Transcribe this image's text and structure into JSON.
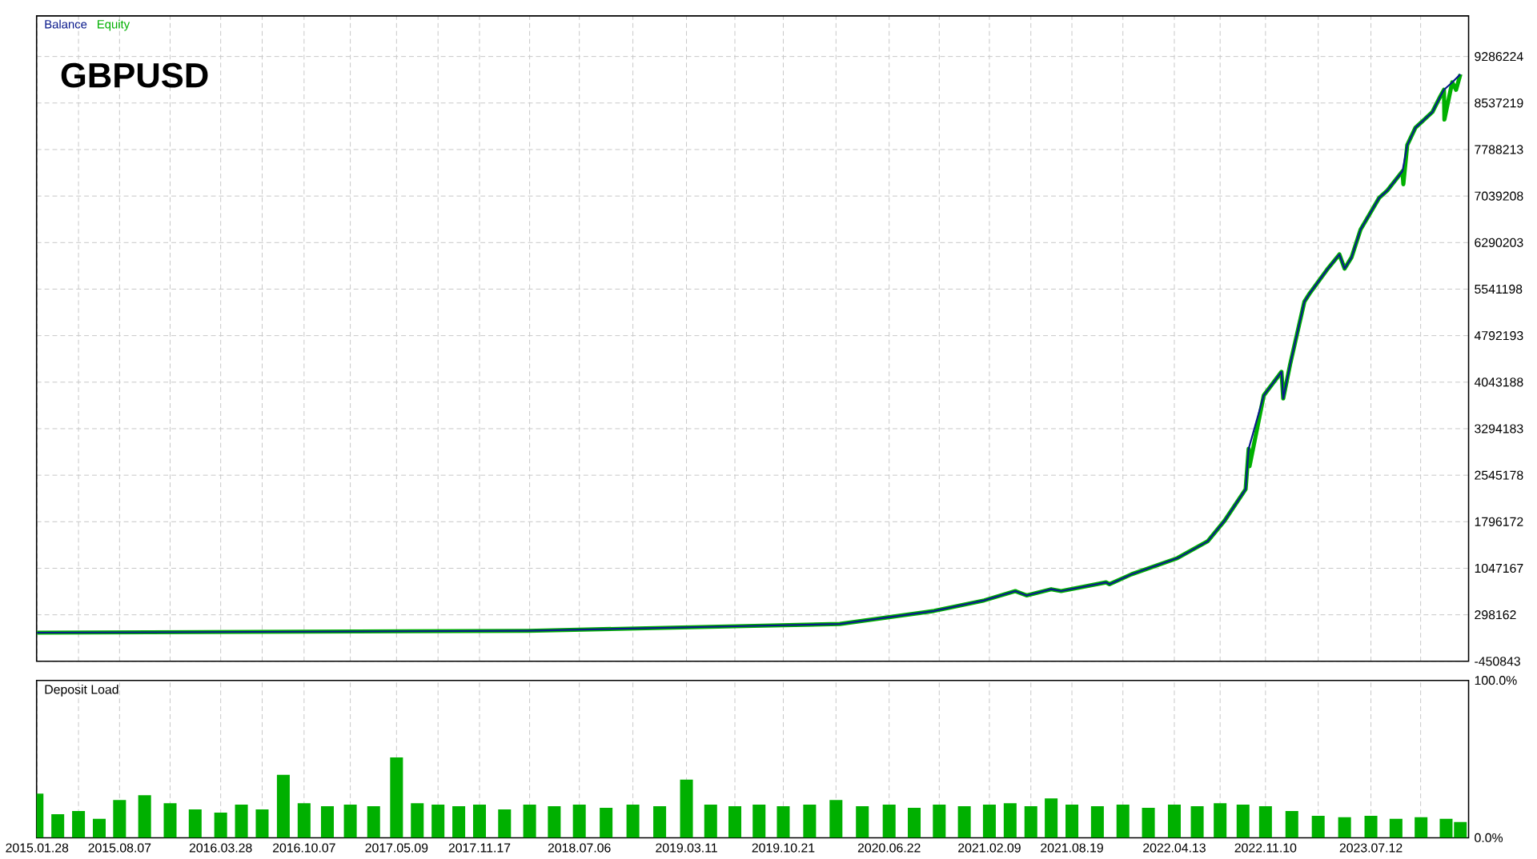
{
  "chart_data": [
    {
      "type": "line",
      "title": "GBPUSD",
      "legend": "top left",
      "grid": true,
      "tick_labels": "y",
      "xlim": [
        "2015-01-27",
        "2024-02-23"
      ],
      "ylim": [
        -450843,
        9940000
      ],
      "xticks": [
        {
          "value": "2015-01-28",
          "label": null
        },
        {
          "value": "2015-05-04",
          "label": null
        },
        {
          "value": "2015-08-07",
          "label": null
        },
        {
          "value": "2015-12-02",
          "label": null
        },
        {
          "value": "2016-03-28",
          "label": null
        },
        {
          "value": "2016-07-02",
          "label": null
        },
        {
          "value": "2016-10-07",
          "label": null
        },
        {
          "value": "2017-01-22",
          "label": null
        },
        {
          "value": "2017-05-09",
          "label": null
        },
        {
          "value": "2017-08-13",
          "label": null
        },
        {
          "value": "2017-11-17",
          "label": null
        },
        {
          "value": "2018-03-13",
          "label": null
        },
        {
          "value": "2018-07-06",
          "label": null
        },
        {
          "value": "2018-11-07",
          "label": null
        },
        {
          "value": "2019-03-11",
          "label": null
        },
        {
          "value": "2019-07-01",
          "label": null
        },
        {
          "value": "2019-10-21",
          "label": null
        },
        {
          "value": "2020-02-20",
          "label": null
        },
        {
          "value": "2020-06-22",
          "label": null
        },
        {
          "value": "2020-10-16",
          "label": null
        },
        {
          "value": "2021-02-09",
          "label": null
        },
        {
          "value": "2021-05-16",
          "label": null
        },
        {
          "value": "2021-08-19",
          "label": null
        },
        {
          "value": "2021-12-15",
          "label": null
        },
        {
          "value": "2022-04-13",
          "label": null
        },
        {
          "value": "2022-07-28",
          "label": null
        },
        {
          "value": "2022-11-10",
          "label": null
        },
        {
          "value": "2023-03-12",
          "label": null
        },
        {
          "value": "2023-07-12",
          "label": null
        },
        {
          "value": "2023-11-04",
          "label": null
        }
      ],
      "yticks": [
        -450843,
        298162,
        1047167,
        1796172,
        2545178,
        3294183,
        4043188,
        4792193,
        5541198,
        6290203,
        7039208,
        7788213,
        8537219,
        9286224
      ],
      "series": [
        {
          "name": "Balance",
          "color": "#0a1a8c",
          "x": [
            "2015-01-28",
            "2018-03-09",
            "2019-08-15",
            "2020-02-29",
            "2020-10-04",
            "2021-01-28",
            "2021-04-10",
            "2021-05-06",
            "2021-07-02",
            "2021-07-25",
            "2021-11-06",
            "2021-11-14",
            "2022-01-04",
            "2022-04-20",
            "2022-06-29",
            "2022-08-07",
            "2022-09-25",
            "2022-10-02",
            "2022-11-06",
            "2022-12-17",
            "2022-12-21",
            "2023-01-06",
            "2023-02-08",
            "2023-02-20",
            "2023-04-01",
            "2023-04-30",
            "2023-05-12",
            "2023-05-28",
            "2023-06-18",
            "2023-07-31",
            "2023-08-19",
            "2023-09-23",
            "2023-10-04",
            "2023-10-23",
            "2023-12-01",
            "2023-12-20",
            "2023-12-28",
            "2024-01-16",
            "2024-02-04"
          ],
          "values": [
            10000,
            40000,
            120000,
            150000,
            360000,
            530000,
            680000,
            610000,
            710000,
            680000,
            820000,
            790000,
            950000,
            1210000,
            1480000,
            1810000,
            2320000,
            2970000,
            3830000,
            4210000,
            3780000,
            4330000,
            5340000,
            5470000,
            5850000,
            6100000,
            5870000,
            6050000,
            6500000,
            7010000,
            7130000,
            7440000,
            7860000,
            8140000,
            8390000,
            8650000,
            8750000,
            8870000,
            9000000
          ]
        },
        {
          "name": "Equity",
          "color": "#00b000",
          "x": [
            "2015-01-28",
            "2018-03-09",
            "2019-08-15",
            "2020-02-29",
            "2020-10-04",
            "2021-01-28",
            "2021-04-10",
            "2021-05-06",
            "2021-07-02",
            "2021-07-25",
            "2021-11-06",
            "2021-11-14",
            "2022-01-04",
            "2022-04-20",
            "2022-06-29",
            "2022-08-07",
            "2022-09-25",
            "2022-10-02",
            "2022-10-04",
            "2022-11-06",
            "2022-12-17",
            "2022-12-21",
            "2023-01-06",
            "2023-02-08",
            "2023-02-20",
            "2023-04-01",
            "2023-04-30",
            "2023-05-12",
            "2023-05-28",
            "2023-06-18",
            "2023-07-31",
            "2023-08-19",
            "2023-09-23",
            "2023-09-25",
            "2023-10-04",
            "2023-10-23",
            "2023-12-01",
            "2023-12-20",
            "2023-12-28",
            "2023-12-29",
            "2024-01-16",
            "2024-01-25",
            "2024-02-04"
          ],
          "values": [
            10000,
            40000,
            120000,
            150000,
            360000,
            530000,
            680000,
            610000,
            710000,
            680000,
            820000,
            790000,
            950000,
            1210000,
            1480000,
            1810000,
            2320000,
            2970000,
            2690000,
            3830000,
            4210000,
            3780000,
            4330000,
            5340000,
            5470000,
            5850000,
            6100000,
            5870000,
            6050000,
            6500000,
            7010000,
            7130000,
            7440000,
            7230000,
            7860000,
            8140000,
            8390000,
            8650000,
            8750000,
            8270000,
            8870000,
            8750000,
            9000000
          ]
        }
      ]
    },
    {
      "type": "bar",
      "title": "Deposit Load",
      "grid": "x",
      "color": "#00b000",
      "xlim": [
        "2015-01-27",
        "2024-02-23"
      ],
      "ylim": [
        0,
        100
      ],
      "xticks": [
        {
          "value": "2015-01-28",
          "label": "2015.01.28"
        },
        {
          "value": "2015-05-04",
          "label": null
        },
        {
          "value": "2015-08-07",
          "label": "2015.08.07"
        },
        {
          "value": "2015-12-02",
          "label": null
        },
        {
          "value": "2016-03-28",
          "label": "2016.03.28"
        },
        {
          "value": "2016-07-02",
          "label": null
        },
        {
          "value": "2016-10-07",
          "label": "2016.10.07"
        },
        {
          "value": "2017-01-22",
          "label": null
        },
        {
          "value": "2017-05-09",
          "label": "2017.05.09"
        },
        {
          "value": "2017-08-13",
          "label": null
        },
        {
          "value": "2017-11-17",
          "label": "2017.11.17"
        },
        {
          "value": "2018-03-13",
          "label": null
        },
        {
          "value": "2018-07-06",
          "label": "2018.07.06"
        },
        {
          "value": "2018-11-07",
          "label": null
        },
        {
          "value": "2019-03-11",
          "label": "2019.03.11"
        },
        {
          "value": "2019-07-01",
          "label": null
        },
        {
          "value": "2019-10-21",
          "label": "2019.10.21"
        },
        {
          "value": "2020-02-20",
          "label": null
        },
        {
          "value": "2020-06-22",
          "label": "2020.06.22"
        },
        {
          "value": "2020-10-16",
          "label": null
        },
        {
          "value": "2021-02-09",
          "label": "2021.02.09"
        },
        {
          "value": "2021-05-16",
          "label": null
        },
        {
          "value": "2021-08-19",
          "label": "2021.08.19"
        },
        {
          "value": "2021-12-15",
          "label": null
        },
        {
          "value": "2022-04-13",
          "label": "2022.04.13"
        },
        {
          "value": "2022-07-28",
          "label": null
        },
        {
          "value": "2022-11-10",
          "label": "2022.11.10"
        },
        {
          "value": "2023-03-12",
          "label": null
        },
        {
          "value": "2023-07-12",
          "label": "2023.07.12"
        },
        {
          "value": "2023-11-04",
          "label": null
        }
      ],
      "yticks": [
        {
          "value": 0,
          "label": "0.0%"
        },
        {
          "value": 100,
          "label": "100.0%"
        }
      ],
      "x": [
        "2015-01-28",
        "2015-03-17",
        "2015-05-04",
        "2015-06-21",
        "2015-08-07",
        "2015-10-04",
        "2015-12-02",
        "2016-01-29",
        "2016-03-28",
        "2016-05-15",
        "2016-07-02",
        "2016-08-20",
        "2016-10-07",
        "2016-11-30",
        "2017-01-22",
        "2017-03-17",
        "2017-05-09",
        "2017-06-26",
        "2017-08-13",
        "2017-09-30",
        "2017-11-17",
        "2018-01-14",
        "2018-03-13",
        "2018-05-09",
        "2018-07-06",
        "2018-09-06",
        "2018-11-07",
        "2019-01-08",
        "2019-03-11",
        "2019-05-06",
        "2019-07-01",
        "2019-08-26",
        "2019-10-21",
        "2019-12-21",
        "2020-02-20",
        "2020-04-21",
        "2020-06-22",
        "2020-08-19",
        "2020-10-16",
        "2020-12-13",
        "2021-02-09",
        "2021-03-29",
        "2021-05-16",
        "2021-07-02",
        "2021-08-19",
        "2021-10-17",
        "2021-12-15",
        "2022-02-12",
        "2022-04-13",
        "2022-06-05",
        "2022-07-28",
        "2022-09-19",
        "2022-11-10",
        "2023-01-10",
        "2023-03-12",
        "2023-05-12",
        "2023-07-12",
        "2023-09-08",
        "2023-11-05",
        "2024-01-02",
        "2024-02-04"
      ],
      "values": [
        28,
        15,
        17,
        12,
        24,
        27,
        22,
        18,
        16,
        21,
        18,
        40,
        22,
        20,
        21,
        20,
        51,
        22,
        21,
        20,
        21,
        18,
        21,
        20,
        21,
        19,
        21,
        20,
        37,
        21,
        20,
        21,
        20,
        21,
        24,
        20,
        21,
        19,
        21,
        20,
        21,
        22,
        20,
        25,
        21,
        20,
        21,
        19,
        21,
        20,
        22,
        21,
        20,
        17,
        14,
        13,
        14,
        12,
        13,
        12,
        10
      ]
    }
  ]
}
